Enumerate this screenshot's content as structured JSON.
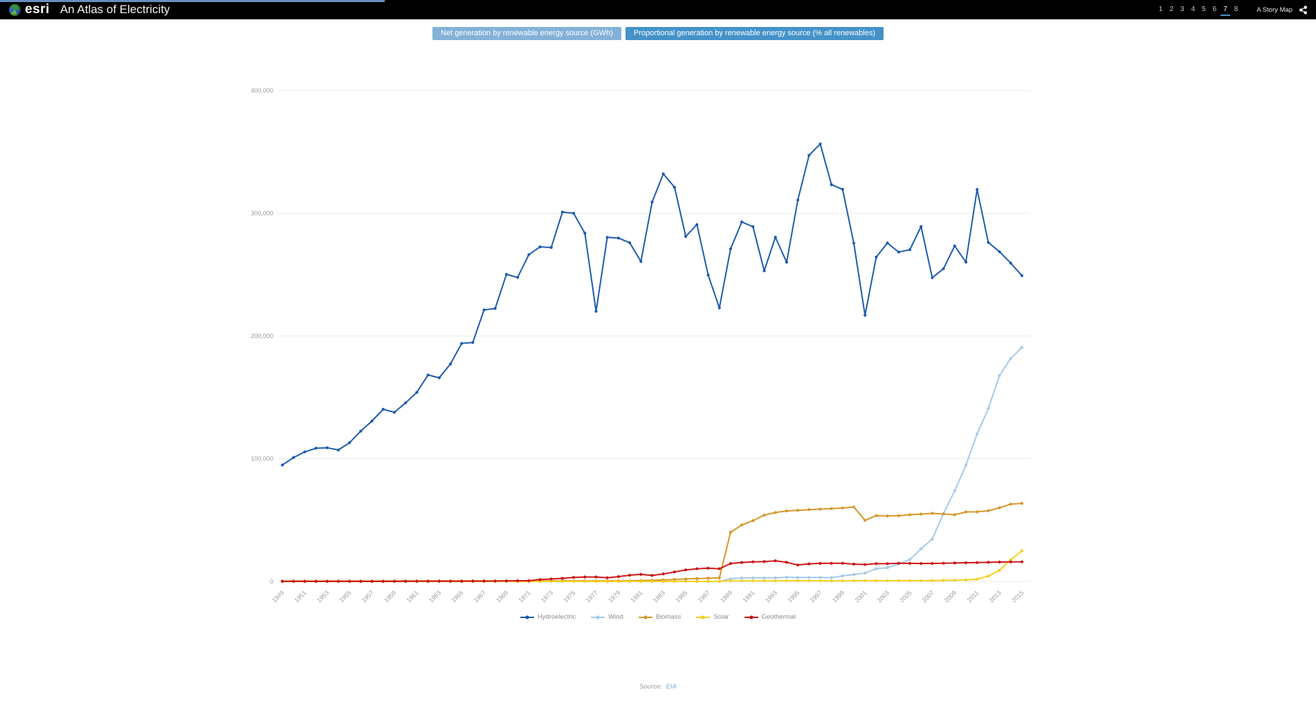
{
  "header": {
    "brand": "esri",
    "title": "An Atlas of Electricity",
    "pages": [
      "1",
      "2",
      "3",
      "4",
      "5",
      "6",
      "7",
      "8"
    ],
    "active_page": "7",
    "story_map_label": "A Story Map"
  },
  "tabs": {
    "net_label": "Net generation by renewable energy source (GWh)",
    "proportional_label": "Proportional generation by renewable energy source (% all renewables)"
  },
  "footer": {
    "source_label": "Source:",
    "source_link": "EIA"
  },
  "colors": {
    "hydroelectric": "#1e5bad",
    "wind": "#a6c9ea",
    "biomass": "#d49729",
    "solar": "#f3cf1f",
    "geothermal": "#cc1616",
    "grid": "#e8e8e8",
    "tick_text": "#9b9b9b",
    "tab_active": "#83b1d8",
    "tab_inactive": "#4492c8",
    "page_underline": "#4a90c8"
  },
  "chart_data": {
    "type": "line",
    "title": "Net generation by renewable energy source (GWh)",
    "xlabel": "",
    "ylabel": "",
    "grid": true,
    "legend_position": "bottom",
    "ylim": [
      0,
      400000
    ],
    "y_ticks": [
      0,
      100000,
      200000,
      300000,
      400000
    ],
    "y_tick_labels": [
      "0",
      "100,000",
      "200,000",
      "300,000",
      "400,000"
    ],
    "x": [
      1949,
      1950,
      1951,
      1952,
      1953,
      1954,
      1955,
      1956,
      1957,
      1958,
      1959,
      1960,
      1961,
      1962,
      1963,
      1964,
      1965,
      1966,
      1967,
      1968,
      1969,
      1970,
      1971,
      1972,
      1973,
      1974,
      1975,
      1976,
      1977,
      1978,
      1979,
      1980,
      1981,
      1982,
      1983,
      1984,
      1985,
      1986,
      1987,
      1988,
      1989,
      1990,
      1991,
      1992,
      1993,
      1994,
      1995,
      1996,
      1997,
      1998,
      1999,
      2000,
      2001,
      2002,
      2003,
      2004,
      2005,
      2006,
      2007,
      2008,
      2009,
      2010,
      2011,
      2012,
      2013,
      2014,
      2015
    ],
    "x_tick_labels": [
      "1949",
      "1951",
      "1953",
      "1955",
      "1957",
      "1959",
      "1961",
      "1963",
      "1965",
      "1967",
      "1969",
      "1971",
      "1973",
      "1975",
      "1977",
      "1979",
      "1981",
      "1983",
      "1985",
      "1987",
      "1989",
      "1991",
      "1993",
      "1995",
      "1997",
      "1999",
      "2001",
      "2003",
      "2005",
      "2007",
      "2009",
      "2011",
      "2013",
      "2015"
    ],
    "series": [
      {
        "name": "Hydroelectric",
        "color": "#1e5bad",
        "values": [
          94800,
          100900,
          105500,
          108500,
          108900,
          107100,
          113000,
          122500,
          130700,
          140300,
          137800,
          145500,
          154000,
          168200,
          165900,
          177200,
          193900,
          194700,
          221200,
          222500,
          250200,
          247700,
          266300,
          272600,
          272100,
          301000,
          300000,
          283700,
          220100,
          280400,
          279800,
          276000,
          260700,
          309200,
          332100,
          321200,
          281100,
          290800,
          249700,
          222900,
          271000,
          292900,
          289000,
          253100,
          280500,
          260100,
          310800,
          347200,
          356500,
          323300,
          319500,
          275600,
          216900,
          264300,
          275800,
          268400,
          270300,
          289200,
          247500,
          254800,
          273400,
          260200,
          319400,
          276200,
          268600,
          259400,
          249100
        ]
      },
      {
        "name": "Wind",
        "color": "#a6c9ea",
        "values": [
          0,
          0,
          0,
          0,
          0,
          0,
          0,
          0,
          0,
          0,
          0,
          0,
          0,
          0,
          0,
          0,
          0,
          0,
          0,
          0,
          0,
          0,
          0,
          0,
          0,
          0,
          0,
          0,
          0,
          0,
          0,
          0,
          0,
          0,
          3,
          7,
          6,
          4,
          4,
          1,
          2112,
          2789,
          2951,
          2888,
          3006,
          3447,
          3164,
          3234,
          3288,
          3026,
          4488,
          5593,
          6737,
          10354,
          11187,
          14144,
          17811,
          26589,
          34450,
          55363,
          73886,
          94652,
          120177,
          140822,
          167840,
          181655,
          190719
        ]
      },
      {
        "name": "Biomass",
        "color": "#d49729",
        "values": [
          350,
          350,
          350,
          350,
          350,
          350,
          350,
          350,
          350,
          350,
          350,
          400,
          400,
          400,
          400,
          400,
          400,
          400,
          400,
          400,
          400,
          450,
          450,
          450,
          450,
          450,
          450,
          450,
          450,
          450,
          450,
          500,
          700,
          900,
          1200,
          1600,
          2000,
          2300,
          2600,
          2900,
          40000,
          46000,
          49500,
          54000,
          56100,
          57400,
          57900,
          58500,
          58900,
          59300,
          59800,
          60700,
          49750,
          53600,
          53300,
          53500,
          54300,
          54900,
          55500,
          55000,
          54300,
          56600,
          56700,
          57600,
          60000,
          63000,
          63600
        ]
      },
      {
        "name": "Solar",
        "color": "#f3cf1f",
        "values": [
          0,
          0,
          0,
          0,
          0,
          0,
          0,
          0,
          0,
          0,
          0,
          0,
          0,
          0,
          0,
          0,
          0,
          0,
          0,
          0,
          0,
          0,
          0,
          0,
          0,
          0,
          0,
          0,
          0,
          0,
          0,
          0,
          0,
          0,
          0,
          6,
          11,
          15,
          20,
          30,
          435,
          367,
          462,
          431,
          470,
          488,
          497,
          521,
          511,
          502,
          495,
          493,
          543,
          555,
          534,
          575,
          550,
          508,
          612,
          864,
          891,
          1212,
          1818,
          4327,
          9036,
          17691,
          24893
        ]
      },
      {
        "name": "Geothermal",
        "color": "#cc1616",
        "values": [
          0,
          0,
          0,
          0,
          0,
          0,
          0,
          0,
          0,
          0,
          0,
          33,
          90,
          104,
          179,
          197,
          190,
          222,
          258,
          295,
          390,
          525,
          550,
          1453,
          1964,
          2453,
          3246,
          3616,
          3582,
          2978,
          3889,
          5073,
          5686,
          4843,
          6075,
          7741,
          9325,
          10308,
          10775,
          10300,
          14593,
          15434,
          15967,
          16138,
          16789,
          15536,
          13378,
          14329,
          14726,
          14774,
          14827,
          14093,
          13741,
          14491,
          14424,
          14811,
          14692,
          14568,
          14637,
          14840,
          15009,
          15219,
          15316,
          15562,
          15775,
          15877,
          15918
        ]
      }
    ]
  }
}
